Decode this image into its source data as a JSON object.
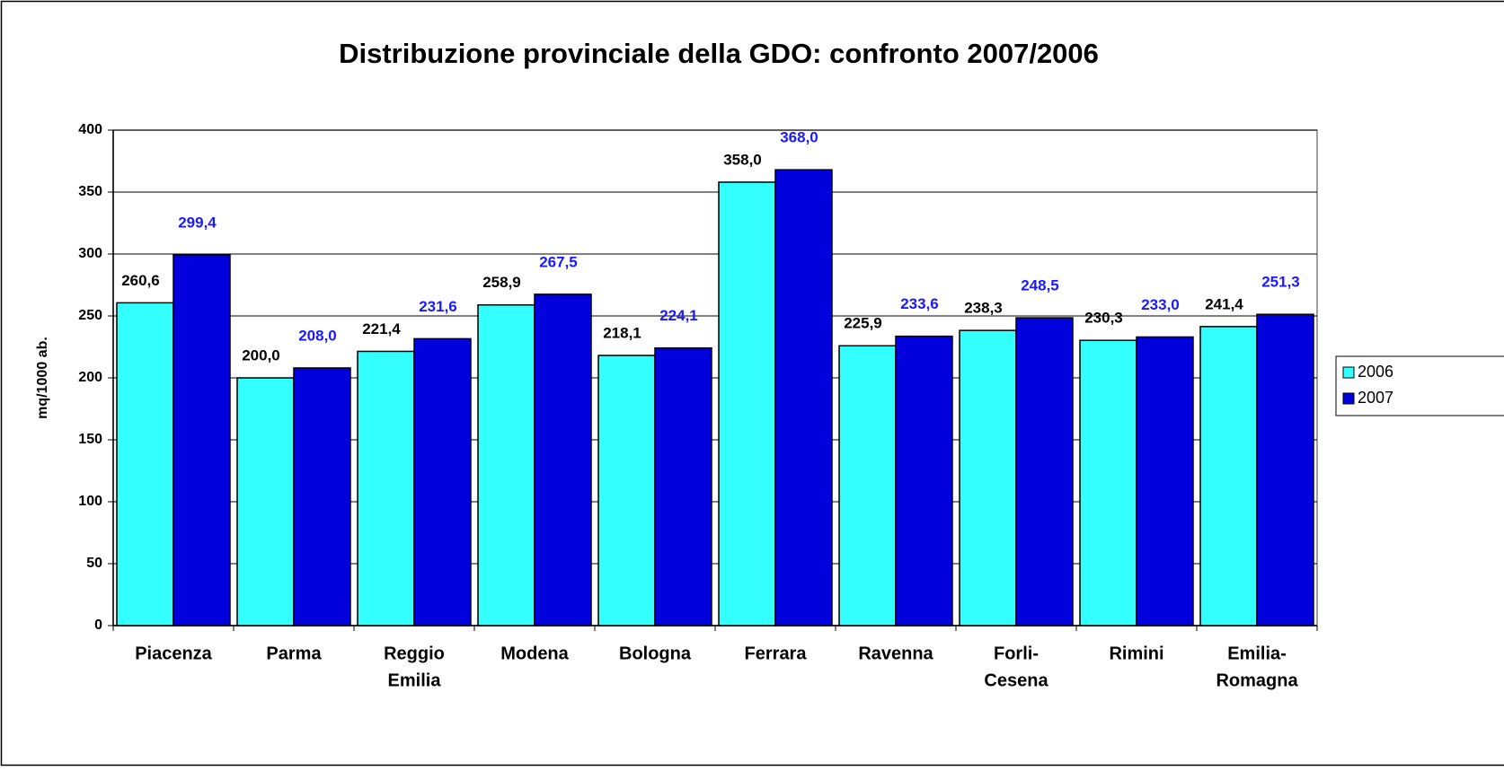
{
  "chart_data": {
    "type": "bar",
    "title": "Distribuzione provinciale della GDO: confronto 2007/2006",
    "y_label": "mq/1000 ab.",
    "categories": [
      [
        "Piacenza"
      ],
      [
        "Parma"
      ],
      [
        "Reggio",
        "Emilia"
      ],
      [
        "Modena"
      ],
      [
        "Bologna"
      ],
      [
        "Ferrara"
      ],
      [
        "Ravenna"
      ],
      [
        "Forli-",
        "Cesena"
      ],
      [
        "Rimini"
      ],
      [
        "Emilia-",
        "Romagna"
      ]
    ],
    "series": [
      {
        "name": "2006",
        "color": "#33ffff",
        "label_color": "#000000",
        "values": [
          260.6,
          200.0,
          221.4,
          258.9,
          218.1,
          358.0,
          225.9,
          238.3,
          230.3,
          241.4
        ],
        "value_labels": [
          "260,6",
          "200,0",
          "221,4",
          "258,9",
          "218,1",
          "358,0",
          "225,9",
          "238,3",
          "230,3",
          "241,4"
        ]
      },
      {
        "name": "2007",
        "color": "#0000dd",
        "label_color": "#1a1aff",
        "values": [
          299.4,
          208.0,
          231.6,
          267.5,
          224.1,
          368.0,
          233.6,
          248.5,
          233.0,
          251.3
        ],
        "value_labels": [
          "299,4",
          "208,0",
          "231,6",
          "267,5",
          "224,1",
          "368,0",
          "233,6",
          "248,5",
          "233,0",
          "251,3"
        ]
      }
    ],
    "ylim": [
      0,
      400
    ],
    "yticks": [
      0,
      50,
      100,
      150,
      200,
      250,
      300,
      350,
      400
    ],
    "grid": true,
    "legend": "right"
  }
}
